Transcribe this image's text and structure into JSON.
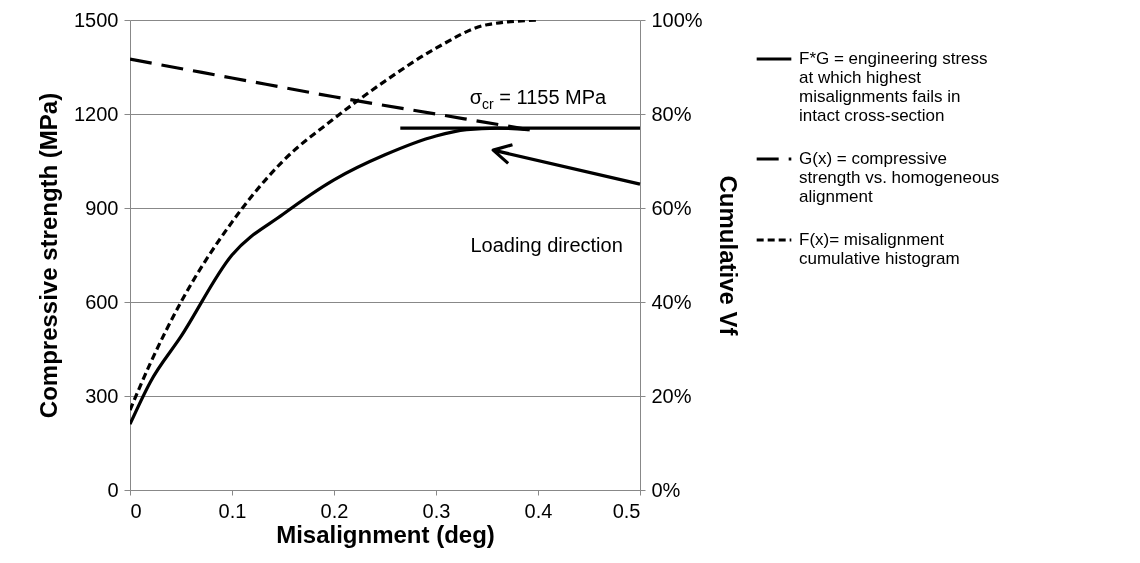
{
  "chart_data": {
    "type": "line",
    "xlabel": "Misalignment (deg)",
    "ylabel": "Compressive strength (MPa)",
    "y2label": "Cumulative Vf",
    "xlim": [
      0,
      0.5
    ],
    "xticks": [
      0,
      0.1,
      0.2,
      0.3,
      0.4,
      0.5
    ],
    "ylim": [
      0,
      1500
    ],
    "yticks": [
      0,
      300,
      600,
      900,
      1200,
      1500
    ],
    "y2lim": [
      0,
      100
    ],
    "y2ticks": [
      {
        "value": 0,
        "label": "0%"
      },
      {
        "value": 20,
        "label": "20%"
      },
      {
        "value": 40,
        "label": "40%"
      },
      {
        "value": 60,
        "label": "60%"
      },
      {
        "value": 80,
        "label": "80%"
      },
      {
        "value": 100,
        "label": "100%"
      }
    ],
    "grid": "y",
    "legend": "right",
    "series": [
      {
        "name": "F*G = engineering stress at which highest misalignments fails in intact cross-section",
        "color": "#000000",
        "line_style": "solid",
        "x": [
          0,
          0.02,
          0.05,
          0.1,
          0.15,
          0.2,
          0.25,
          0.3,
          0.33,
          0.36,
          0.39
        ],
        "values": [
          210,
          345,
          490,
          750,
          880,
          990,
          1070,
          1130,
          1150,
          1155,
          1150
        ]
      },
      {
        "name": "G(x) = compressive strength vs. homogeneous alignment",
        "color": "#000000",
        "line_style": "dashed",
        "x": [
          0,
          0.1,
          0.2,
          0.3,
          0.4
        ],
        "values": [
          1375,
          1315,
          1255,
          1200,
          1145
        ]
      },
      {
        "name": "F(x)= misalignment cumulative histogram",
        "color": "#000000",
        "line_style": "dotted",
        "axis": "y2",
        "x": [
          0,
          0.02,
          0.05,
          0.1,
          0.15,
          0.2,
          0.25,
          0.3,
          0.35,
          0.4
        ],
        "values": [
          17,
          27,
          40,
          57,
          70,
          79,
          87,
          94,
          99,
          100
        ]
      },
      {
        "color": "#000000",
        "line_style": "solid",
        "x": [
          0.265,
          0.5
        ],
        "values": [
          1155,
          1155
        ]
      }
    ],
    "annotations": [
      {
        "text": "σ$_{cr}$ = 1155 MPa",
        "x": 0.4,
        "y": 1155
      },
      "Loading direction"
    ]
  }
}
